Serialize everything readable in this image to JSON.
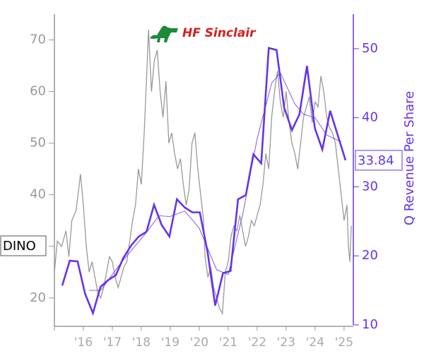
{
  "chart_data": {
    "type": "line",
    "logo_text": "HF Sinclair",
    "y2label": "Q Revenue Per Share",
    "xlim": [
      2015,
      2025.32
    ],
    "xticks": [
      {
        "value": 2016,
        "label": "'16"
      },
      {
        "value": 2017,
        "label": "'17"
      },
      {
        "value": 2018,
        "label": "'18"
      },
      {
        "value": 2019,
        "label": "'19"
      },
      {
        "value": 2020,
        "label": "'20"
      },
      {
        "value": 2021,
        "label": "'21"
      },
      {
        "value": 2022,
        "label": "'22"
      },
      {
        "value": 2023,
        "label": "'23"
      },
      {
        "value": 2024,
        "label": "'24"
      },
      {
        "value": 2025,
        "label": "'25"
      }
    ],
    "ylim": [
      14.5,
      75
    ],
    "yticks": [
      20,
      30,
      40,
      50,
      60,
      70
    ],
    "y2lim": [
      10,
      55
    ],
    "y2ticks": [
      10,
      20,
      30,
      40,
      50
    ],
    "series": [
      {
        "name": "DINO",
        "color": "#999999",
        "x": [
          2015.0,
          2015.1,
          2015.25,
          2015.4,
          2015.5,
          2015.6,
          2015.75,
          2015.9,
          2016.0,
          2016.1,
          2016.2,
          2016.3,
          2016.4,
          2016.5,
          2016.6,
          2016.7,
          2016.8,
          2016.9,
          2017.0,
          2017.1,
          2017.2,
          2017.3,
          2017.4,
          2017.5,
          2017.6,
          2017.7,
          2017.8,
          2017.9,
          2018.0,
          2018.1,
          2018.2,
          2018.25,
          2018.35,
          2018.45,
          2018.55,
          2018.65,
          2018.75,
          2018.85,
          2018.95,
          2019.05,
          2019.15,
          2019.25,
          2019.35,
          2019.45,
          2019.55,
          2019.65,
          2019.75,
          2019.85,
          2019.95,
          2020.05,
          2020.15,
          2020.2,
          2020.3,
          2020.4,
          2020.5,
          2020.6,
          2020.7,
          2020.8,
          2020.9,
          2021.0,
          2021.1,
          2021.2,
          2021.3,
          2021.4,
          2021.5,
          2021.6,
          2021.7,
          2021.8,
          2021.9,
          2022.0,
          2022.1,
          2022.2,
          2022.3,
          2022.4,
          2022.5,
          2022.6,
          2022.7,
          2022.8,
          2022.9,
          2023.0,
          2023.1,
          2023.2,
          2023.3,
          2023.4,
          2023.5,
          2023.6,
          2023.7,
          2023.8,
          2023.9,
          2024.0,
          2024.1,
          2024.2,
          2024.3,
          2024.4,
          2024.5,
          2024.6,
          2024.7,
          2024.8,
          2024.9,
          2025.0,
          2025.1,
          2025.15,
          2025.2,
          2025.25
        ],
        "values": [
          25,
          31,
          30,
          33,
          28,
          35,
          37,
          44,
          38,
          30,
          25,
          27,
          24,
          21,
          20,
          22,
          25,
          28,
          27,
          24,
          22,
          24,
          26,
          27,
          31,
          35,
          38,
          45,
          42,
          52,
          65,
          72,
          60,
          66,
          68,
          60,
          55,
          62,
          50,
          52,
          48,
          45,
          47,
          42,
          38,
          41,
          50,
          52,
          45,
          40,
          35,
          28,
          24,
          26,
          22,
          20,
          18,
          17,
          25,
          27,
          32,
          34,
          33,
          36,
          33,
          30,
          32,
          35,
          34,
          36,
          38,
          42,
          48,
          45,
          55,
          60,
          64,
          58,
          55,
          60,
          54,
          50,
          48,
          45,
          50,
          55,
          57,
          59,
          54,
          58,
          57,
          63,
          60,
          55,
          53,
          52,
          50,
          45,
          40,
          35,
          38,
          30,
          27,
          34
        ]
      },
      {
        "color": "#6633ee",
        "axis": "y2",
        "x": [
          2015.27,
          2015.53,
          2015.8,
          2016.06,
          2016.33,
          2016.59,
          2016.86,
          2017.12,
          2017.38,
          2017.65,
          2017.91,
          2018.18,
          2018.44,
          2018.7,
          2018.97,
          2019.23,
          2019.5,
          2019.76,
          2020.02,
          2020.29,
          2020.55,
          2020.82,
          2021.08,
          2021.34,
          2021.61,
          2021.87,
          2022.14,
          2022.4,
          2022.67,
          2022.93,
          2023.2,
          2023.46,
          2023.72,
          2023.99,
          2024.25,
          2024.52,
          2024.78,
          2025.05
        ],
        "values": [
          15.7,
          19.3,
          19.2,
          14.5,
          11.7,
          15.5,
          16.5,
          17.2,
          19.7,
          21.5,
          22.8,
          23.5,
          27.4,
          24.5,
          22.8,
          28.2,
          27,
          26.3,
          26.3,
          20.5,
          12.8,
          17.5,
          17.8,
          28.2,
          28.8,
          34.7,
          33.4,
          50.1,
          49.8,
          41.5,
          38.2,
          40.5,
          47.5,
          38.5,
          35.4,
          41.0,
          37.5,
          33.84
        ]
      },
      {
        "color": "#6633ee",
        "axis": "y2",
        "x": [
          2016.2,
          2016.6,
          2017.3,
          2018.2,
          2018.6,
          2019.0,
          2019.5,
          2020.0,
          2020.6,
          2021.0,
          2021.5,
          2022.0,
          2022.5,
          2022.8,
          2023.3,
          2023.6,
          2024.0,
          2024.4,
          2024.9
        ],
        "values": [
          15,
          15,
          19,
          23.5,
          25.8,
          25.7,
          26.5,
          24,
          18,
          17.3,
          26,
          37,
          45,
          46.5,
          42,
          40.5,
          40,
          37.5,
          36.5
        ]
      }
    ]
  }
}
